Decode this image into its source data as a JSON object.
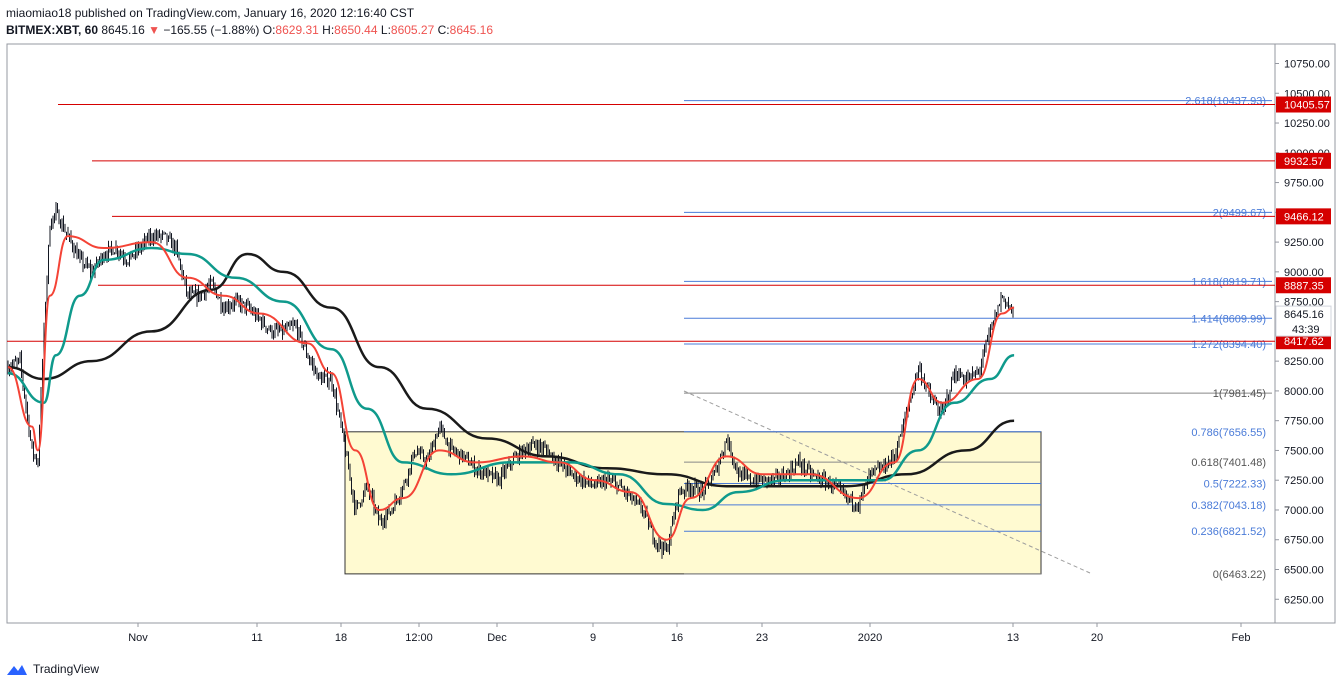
{
  "header": {
    "publisher_line": "miaomiao18 published on TradingView.com, January 16, 2020 12:16:40 CST",
    "symbol": "BITMEX:XBT, 60",
    "last": "8645.16",
    "change_arrow": "▼",
    "change": "−165.55 (−1.88%)",
    "o_label": "O:",
    "o_value": "8629.31",
    "h_label": "H:",
    "h_value": "8650.44",
    "l_label": "L:",
    "l_value": "8605.27",
    "c_label": "C:",
    "c_value": "8645.16"
  },
  "footer": {
    "brand": "TradingView"
  },
  "colors": {
    "up": "#26a69a",
    "down": "#ef5350",
    "candle": "#131722",
    "ema_fast": "#f44336",
    "ema_mid": "#0f9a8c",
    "ema_slow": "#1a1a1a",
    "hline": "#d50000",
    "fib": "#4a7bd8",
    "box_fill": "#fffad1"
  },
  "chart_data": {
    "type": "candlestick",
    "symbol": "BITMEX:XBT",
    "interval": "60",
    "y_axis": {
      "range": [
        6000,
        11000
      ],
      "ticks": [
        6250,
        6500,
        6750,
        7000,
        7250,
        7500,
        7750,
        8000,
        8250,
        8500,
        8750,
        9000,
        9250,
        9500,
        9750,
        10000,
        10250,
        10500,
        10750
      ]
    },
    "x_axis": {
      "tick_labels": [
        "Nov",
        "11",
        "18",
        "12:00",
        "Dec",
        "9",
        "16",
        "23",
        "2020",
        "13",
        "20",
        "Feb"
      ]
    },
    "last_price": "8645.16",
    "countdown": "43:39",
    "horizontal_levels": [
      "10405.57",
      "9932.57",
      "9466.12",
      "8887.35",
      "8417.62"
    ],
    "fibonacci": [
      {
        "ratio": "2.618",
        "price": "10437.93"
      },
      {
        "ratio": "2",
        "price": "9499.67"
      },
      {
        "ratio": "1.618",
        "price": "8919.71"
      },
      {
        "ratio": "1.414",
        "price": "8609.99"
      },
      {
        "ratio": "1.272",
        "price": "8394.40"
      },
      {
        "ratio": "1",
        "price": "7981.45"
      },
      {
        "ratio": "0.786",
        "price": "7656.55"
      },
      {
        "ratio": "0.618",
        "price": "7401.48"
      },
      {
        "ratio": "0.5",
        "price": "7222.33"
      },
      {
        "ratio": "0.382",
        "price": "7043.18"
      },
      {
        "ratio": "0.236",
        "price": "6821.52"
      },
      {
        "ratio": "0",
        "price": "6463.22"
      }
    ],
    "rectangle": {
      "price_top": 7656.55,
      "price_bottom": 6463.22
    },
    "price_path": [
      [
        "2019-10-24",
        8200
      ],
      [
        "2019-10-25",
        8250
      ],
      [
        "2019-10-26",
        7500
      ],
      [
        "2019-10-26 12:00",
        7400
      ],
      [
        "2019-10-27",
        8500
      ],
      [
        "2019-10-27 12:00",
        9400
      ],
      [
        "2019-10-28",
        9500
      ],
      [
        "2019-10-29",
        9300
      ],
      [
        "2019-10-30",
        9100
      ],
      [
        "2019-10-31",
        9000
      ],
      [
        "2019-11-01",
        9150
      ],
      [
        "2019-11-02",
        9200
      ],
      [
        "2019-11-03",
        9100
      ],
      [
        "2019-11-04",
        9200
      ],
      [
        "2019-11-05",
        9300
      ],
      [
        "2019-11-06",
        9300
      ],
      [
        "2019-11-07",
        9200
      ],
      [
        "2019-11-08",
        8800
      ],
      [
        "2019-11-09",
        8800
      ],
      [
        "2019-11-10",
        8900
      ],
      [
        "2019-11-11",
        8700
      ],
      [
        "2019-11-12",
        8750
      ],
      [
        "2019-11-13",
        8700
      ],
      [
        "2019-11-14",
        8600
      ],
      [
        "2019-11-15",
        8500
      ],
      [
        "2019-11-16",
        8500
      ],
      [
        "2019-11-17",
        8550
      ],
      [
        "2019-11-18",
        8300
      ],
      [
        "2019-11-19",
        8100
      ],
      [
        "2019-11-20",
        8100
      ],
      [
        "2019-11-21",
        7600
      ],
      [
        "2019-11-22",
        7000
      ],
      [
        "2019-11-23",
        7200
      ],
      [
        "2019-11-24",
        6900
      ],
      [
        "2019-11-25",
        7000
      ],
      [
        "2019-11-26",
        7200
      ],
      [
        "2019-11-27",
        7500
      ],
      [
        "2019-11-28",
        7400
      ],
      [
        "2019-11-29",
        7700
      ],
      [
        "2019-11-30",
        7500
      ],
      [
        "2019-12-01",
        7450
      ],
      [
        "2019-12-02",
        7350
      ],
      [
        "2019-12-03",
        7300
      ],
      [
        "2019-12-04",
        7250
      ],
      [
        "2019-12-05",
        7400
      ],
      [
        "2019-12-06",
        7500
      ],
      [
        "2019-12-07",
        7550
      ],
      [
        "2019-12-08",
        7500
      ],
      [
        "2019-12-09",
        7400
      ],
      [
        "2019-12-10",
        7300
      ],
      [
        "2019-12-11",
        7250
      ],
      [
        "2019-12-12",
        7200
      ],
      [
        "2019-12-13",
        7250
      ],
      [
        "2019-12-14",
        7200
      ],
      [
        "2019-12-15",
        7100
      ],
      [
        "2019-12-16",
        7000
      ],
      [
        "2019-12-17",
        6750
      ],
      [
        "2019-12-18",
        6650
      ],
      [
        "2019-12-19",
        7150
      ],
      [
        "2019-12-20",
        7200
      ],
      [
        "2019-12-21",
        7150
      ],
      [
        "2019-12-22",
        7300
      ],
      [
        "2019-12-23",
        7600
      ],
      [
        "2019-12-24",
        7300
      ],
      [
        "2019-12-25",
        7250
      ],
      [
        "2019-12-26",
        7250
      ],
      [
        "2019-12-27",
        7250
      ],
      [
        "2019-12-28",
        7300
      ],
      [
        "2019-12-29",
        7400
      ],
      [
        "2019-12-30",
        7300
      ],
      [
        "2019-12-31",
        7250
      ],
      [
        "2020-01-01",
        7200
      ],
      [
        "2020-01-02",
        7100
      ],
      [
        "2020-01-03",
        7050
      ],
      [
        "2020-01-04",
        7300
      ],
      [
        "2020-01-05",
        7350
      ],
      [
        "2020-01-06",
        7450
      ],
      [
        "2020-01-07",
        7800
      ],
      [
        "2020-01-08",
        8200
      ],
      [
        "2020-01-09",
        7950
      ],
      [
        "2020-01-10",
        7800
      ],
      [
        "2020-01-11",
        8150
      ],
      [
        "2020-01-12",
        8100
      ],
      [
        "2020-01-13",
        8150
      ],
      [
        "2020-01-14",
        8500
      ],
      [
        "2020-01-15",
        8800
      ],
      [
        "2020-01-16",
        8645
      ]
    ],
    "ema_fast_path": [
      [
        "2019-10-24",
        8200
      ],
      [
        "2019-10-26",
        7700
      ],
      [
        "2019-10-26 12:00",
        7500
      ],
      [
        "2019-10-27 12:00",
        8800
      ],
      [
        "2019-10-29",
        9300
      ],
      [
        "2019-11-01",
        9200
      ],
      [
        "2019-11-05",
        9250
      ],
      [
        "2019-11-08",
        8950
      ],
      [
        "2019-11-11",
        8800
      ],
      [
        "2019-11-14",
        8650
      ],
      [
        "2019-11-18",
        8400
      ],
      [
        "2019-11-20",
        8150
      ],
      [
        "2019-11-22",
        7500
      ],
      [
        "2019-11-24",
        7000
      ],
      [
        "2019-11-26",
        7100
      ],
      [
        "2019-11-29",
        7500
      ],
      [
        "2019-12-02",
        7400
      ],
      [
        "2019-12-06",
        7450
      ],
      [
        "2019-12-09",
        7400
      ],
      [
        "2019-12-12",
        7250
      ],
      [
        "2019-12-15",
        7150
      ],
      [
        "2019-12-18",
        6750
      ],
      [
        "2019-12-20",
        7100
      ],
      [
        "2019-12-23",
        7450
      ],
      [
        "2019-12-26",
        7300
      ],
      [
        "2019-12-30",
        7300
      ],
      [
        "2020-01-03",
        7100
      ],
      [
        "2020-01-06",
        7400
      ],
      [
        "2020-01-08",
        8100
      ],
      [
        "2020-01-10",
        7900
      ],
      [
        "2020-01-13",
        8100
      ],
      [
        "2020-01-15",
        8650
      ],
      [
        "2020-01-16",
        8700
      ]
    ],
    "ema_mid_path": [
      [
        "2019-10-24",
        8150
      ],
      [
        "2019-10-27",
        7900
      ],
      [
        "2019-10-28",
        8300
      ],
      [
        "2019-10-30",
        8800
      ],
      [
        "2019-11-01",
        9100
      ],
      [
        "2019-11-05",
        9200
      ],
      [
        "2019-11-08",
        9150
      ],
      [
        "2019-11-12",
        8950
      ],
      [
        "2019-11-16",
        8750
      ],
      [
        "2019-11-20",
        8350
      ],
      [
        "2019-11-23",
        7850
      ],
      [
        "2019-11-26",
        7400
      ],
      [
        "2019-11-30",
        7300
      ],
      [
        "2019-12-05",
        7400
      ],
      [
        "2019-12-10",
        7400
      ],
      [
        "2019-12-14",
        7300
      ],
      [
        "2019-12-18",
        7050
      ],
      [
        "2019-12-21",
        7000
      ],
      [
        "2019-12-24",
        7150
      ],
      [
        "2019-12-28",
        7250
      ],
      [
        "2020-01-02",
        7250
      ],
      [
        "2020-01-05",
        7250
      ],
      [
        "2020-01-08",
        7500
      ],
      [
        "2020-01-11",
        7900
      ],
      [
        "2020-01-14",
        8100
      ],
      [
        "2020-01-16",
        8300
      ]
    ],
    "ema_slow_path": [
      [
        "2019-10-24",
        8200
      ],
      [
        "2019-10-27",
        8100
      ],
      [
        "2019-10-31",
        8250
      ],
      [
        "2019-11-05",
        8500
      ],
      [
        "2019-11-10",
        8850
      ],
      [
        "2019-11-13",
        9150
      ],
      [
        "2019-11-16",
        9000
      ],
      [
        "2019-11-20",
        8700
      ],
      [
        "2019-11-24",
        8200
      ],
      [
        "2019-11-28",
        7850
      ],
      [
        "2019-12-03",
        7600
      ],
      [
        "2019-12-08",
        7450
      ],
      [
        "2019-12-13",
        7350
      ],
      [
        "2019-12-18",
        7300
      ],
      [
        "2019-12-23",
        7200
      ],
      [
        "2019-12-28",
        7200
      ],
      [
        "2020-01-02",
        7200
      ],
      [
        "2020-01-07",
        7300
      ],
      [
        "2020-01-12",
        7500
      ],
      [
        "2020-01-16",
        7750
      ]
    ]
  }
}
